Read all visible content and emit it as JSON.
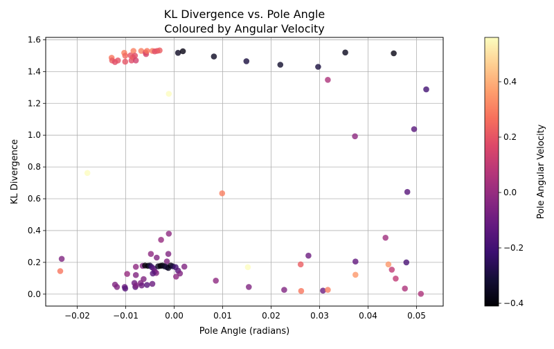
{
  "chart_data": {
    "type": "scatter",
    "title": [
      "KL Divergence vs. Pole Angle",
      "Coloured by Angular Velocity"
    ],
    "xlabel": "Pole Angle (radians)",
    "ylabel": "KL Divergence",
    "colorbar_label": "Pole Angular Velocity",
    "xlim": [
      -0.0265,
      0.0555
    ],
    "ylim": [
      -0.075,
      1.615
    ],
    "x_ticks": [
      -0.02,
      -0.01,
      0.0,
      0.01,
      0.02,
      0.03,
      0.04,
      0.05
    ],
    "x_tick_labels": [
      "−0.02",
      "−0.01",
      "0.00",
      "0.01",
      "0.02",
      "0.03",
      "0.04",
      "0.05"
    ],
    "y_ticks": [
      0.0,
      0.2,
      0.4,
      0.6,
      0.8,
      1.0,
      1.2,
      1.4,
      1.6
    ],
    "y_tick_labels": [
      "0.0",
      "0.2",
      "0.4",
      "0.6",
      "0.8",
      "1.0",
      "1.2",
      "1.4",
      "1.6"
    ],
    "grid": true,
    "colormap": "magma",
    "colorbar_range": [
      -0.41,
      0.56
    ],
    "colorbar_ticks": [
      -0.4,
      -0.2,
      0.0,
      0.2,
      0.4
    ],
    "colorbar_tick_labels": [
      "−0.4",
      "−0.2",
      "0.0",
      "0.2",
      "0.4"
    ],
    "points": [
      [
        -0.0129,
        1.487,
        0.28
      ],
      [
        -0.0128,
        1.47,
        0.22
      ],
      [
        -0.0122,
        1.46,
        0.18
      ],
      [
        -0.0116,
        1.47,
        0.2
      ],
      [
        -0.0103,
        1.518,
        0.3
      ],
      [
        -0.0101,
        1.5,
        0.25
      ],
      [
        -0.0101,
        1.462,
        0.2
      ],
      [
        -0.009,
        1.502,
        0.2
      ],
      [
        -0.0088,
        1.47,
        0.18
      ],
      [
        -0.0085,
        1.49,
        0.22
      ],
      [
        -0.0084,
        1.53,
        0.3
      ],
      [
        -0.0081,
        1.5,
        0.18
      ],
      [
        -0.0079,
        1.47,
        0.14
      ],
      [
        -0.0068,
        1.53,
        0.3
      ],
      [
        -0.0059,
        1.52,
        0.2
      ],
      [
        -0.0058,
        1.51,
        0.15
      ],
      [
        -0.0056,
        1.53,
        0.28
      ],
      [
        -0.0045,
        1.53,
        0.3
      ],
      [
        -0.004,
        1.527,
        0.18
      ],
      [
        -0.0035,
        1.53,
        0.2
      ],
      [
        -0.003,
        1.533,
        0.22
      ],
      [
        0.0008,
        1.518,
        -0.35
      ],
      [
        0.0018,
        1.528,
        -0.38
      ],
      [
        0.0082,
        1.495,
        -0.35
      ],
      [
        0.0149,
        1.465,
        -0.3
      ],
      [
        0.0219,
        1.443,
        -0.33
      ],
      [
        0.0297,
        1.43,
        -0.3
      ],
      [
        0.0353,
        1.52,
        -0.36
      ],
      [
        0.0453,
        1.515,
        -0.38
      ],
      [
        0.0317,
        1.348,
        0.05
      ],
      [
        0.052,
        1.288,
        -0.2
      ],
      [
        0.0495,
        1.038,
        -0.15
      ],
      [
        -0.0011,
        1.26,
        0.56
      ],
      [
        0.0373,
        0.993,
        -0.02
      ],
      [
        -0.0179,
        0.762,
        0.56
      ],
      [
        0.0099,
        0.634,
        0.3
      ],
      [
        0.0481,
        0.643,
        -0.15
      ],
      [
        -0.0011,
        0.38,
        -0.02
      ],
      [
        -0.0027,
        0.342,
        0.0
      ],
      [
        0.0436,
        0.355,
        0.02
      ],
      [
        -0.0232,
        0.222,
        -0.05
      ],
      [
        -0.0235,
        0.145,
        0.28
      ],
      [
        0.0277,
        0.242,
        -0.1
      ],
      [
        0.0374,
        0.205,
        -0.12
      ],
      [
        0.0479,
        0.2,
        -0.18
      ],
      [
        0.0261,
        0.187,
        0.22
      ],
      [
        0.0442,
        0.187,
        0.35
      ],
      [
        0.0152,
        0.17,
        0.56
      ],
      [
        0.0449,
        0.154,
        0.1
      ],
      [
        0.0374,
        0.122,
        0.35
      ],
      [
        0.0457,
        0.098,
        0.1
      ],
      [
        0.0086,
        0.085,
        -0.02
      ],
      [
        0.0154,
        0.045,
        -0.05
      ],
      [
        0.0227,
        0.027,
        -0.05
      ],
      [
        0.0262,
        0.02,
        0.28
      ],
      [
        0.0307,
        0.022,
        -0.1
      ],
      [
        0.0317,
        0.027,
        0.3
      ],
      [
        0.0476,
        0.035,
        0.05
      ],
      [
        0.0509,
        0.002,
        0.05
      ],
      [
        -0.0048,
        0.253,
        -0.02
      ],
      [
        -0.0012,
        0.253,
        -0.05
      ],
      [
        -0.0036,
        0.23,
        -0.05
      ],
      [
        -0.0015,
        0.206,
        -0.05
      ],
      [
        -0.0079,
        0.172,
        -0.02
      ],
      [
        -0.0065,
        0.178,
        -0.05
      ],
      [
        -0.006,
        0.18,
        -0.4
      ],
      [
        -0.0054,
        0.178,
        -0.41
      ],
      [
        -0.005,
        0.18,
        -0.3
      ],
      [
        -0.0046,
        0.17,
        -0.2
      ],
      [
        -0.0042,
        0.16,
        -0.15
      ],
      [
        -0.004,
        0.142,
        -0.1
      ],
      [
        -0.0037,
        0.133,
        -0.05
      ],
      [
        -0.0033,
        0.175,
        -0.35
      ],
      [
        -0.0028,
        0.178,
        -0.41
      ],
      [
        -0.0024,
        0.18,
        -0.38
      ],
      [
        -0.002,
        0.175,
        -0.35
      ],
      [
        -0.0015,
        0.17,
        -0.3
      ],
      [
        -0.0012,
        0.165,
        -0.35
      ],
      [
        -0.0007,
        0.18,
        -0.38
      ],
      [
        -0.0003,
        0.175,
        -0.3
      ],
      [
        0.0003,
        0.17,
        -0.2
      ],
      [
        0.0008,
        0.148,
        -0.15
      ],
      [
        0.0012,
        0.13,
        -0.05
      ],
      [
        0.0021,
        0.173,
        -0.05
      ],
      [
        0.0004,
        0.11,
        -0.02
      ],
      [
        -0.0097,
        0.127,
        0.0
      ],
      [
        -0.0079,
        0.12,
        -0.05
      ],
      [
        -0.0122,
        0.06,
        -0.05
      ],
      [
        -0.0118,
        0.045,
        -0.05
      ],
      [
        -0.0102,
        0.045,
        -0.1
      ],
      [
        -0.0101,
        0.035,
        -0.15
      ],
      [
        -0.0082,
        0.07,
        -0.1
      ],
      [
        -0.008,
        0.045,
        -0.15
      ],
      [
        -0.0079,
        0.055,
        -0.05
      ],
      [
        -0.0069,
        0.07,
        -0.05
      ],
      [
        -0.0067,
        0.055,
        -0.1
      ],
      [
        -0.0063,
        0.095,
        -0.05
      ],
      [
        -0.0056,
        0.058,
        -0.15
      ],
      [
        -0.0045,
        0.065,
        -0.1
      ],
      [
        -0.0044,
        0.13,
        -0.15
      ]
    ]
  }
}
